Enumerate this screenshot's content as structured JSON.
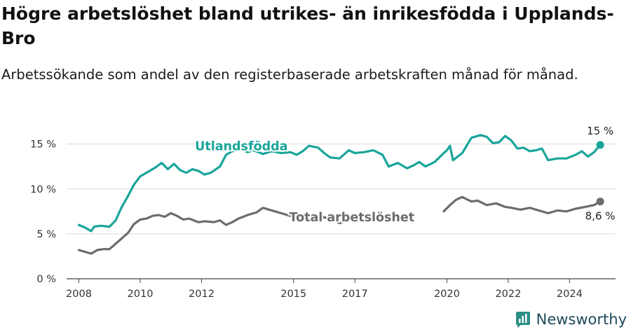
{
  "chart_data": {
    "type": "line",
    "title": "Högre arbetslöshet bland utrikes- än inrikesfödda i Upplands-Bro",
    "subtitle": "Arbetssökande som andel av den registerbaserade arbetskraften månad för månad.",
    "xlabel": "",
    "ylabel": "",
    "ylim": [
      0,
      17
    ],
    "xlim": [
      2007.6,
      2025.5
    ],
    "yticks": [
      0,
      5,
      10,
      15
    ],
    "ytick_labels": [
      "0 %",
      "5 %",
      "10 %",
      "15 %"
    ],
    "xticks": [
      2008,
      2010,
      2012,
      2015,
      2017,
      2020,
      2022,
      2024
    ],
    "xtick_labels": [
      "2008",
      "2010",
      "2012",
      "2015",
      "2017",
      "2020",
      "2022",
      "2024"
    ],
    "grid": "horizontal",
    "series": [
      {
        "name": "Utlandsfödda",
        "color": "#1aa59a",
        "end_label": "15 %",
        "points": [
          [
            2008.0,
            6.0
          ],
          [
            2008.2,
            5.7
          ],
          [
            2008.4,
            5.3
          ],
          [
            2008.5,
            5.8
          ],
          [
            2008.7,
            5.9
          ],
          [
            2009.0,
            5.8
          ],
          [
            2009.2,
            6.5
          ],
          [
            2009.4,
            8.0
          ],
          [
            2009.6,
            9.2
          ],
          [
            2009.8,
            10.5
          ],
          [
            2010.0,
            11.4
          ],
          [
            2010.2,
            11.8
          ],
          [
            2010.5,
            12.4
          ],
          [
            2010.7,
            12.9
          ],
          [
            2010.9,
            12.2
          ],
          [
            2011.1,
            12.8
          ],
          [
            2011.3,
            12.1
          ],
          [
            2011.5,
            11.8
          ],
          [
            2011.7,
            12.2
          ],
          [
            2011.9,
            12.0
          ],
          [
            2012.1,
            11.6
          ],
          [
            2012.3,
            11.8
          ],
          [
            2012.6,
            12.5
          ],
          [
            2012.8,
            13.8
          ],
          [
            2013.0,
            14.2
          ],
          [
            2013.3,
            14.4
          ],
          [
            2013.5,
            14.1
          ],
          [
            2013.7,
            14.3
          ],
          [
            2014.0,
            13.9
          ],
          [
            2014.3,
            14.2
          ],
          [
            2014.6,
            14.0
          ],
          [
            2014.9,
            14.1
          ],
          [
            2015.1,
            13.8
          ],
          [
            2015.3,
            14.2
          ],
          [
            2015.5,
            14.8
          ],
          [
            2015.8,
            14.6
          ],
          [
            2016.0,
            14.0
          ],
          [
            2016.2,
            13.5
          ],
          [
            2016.5,
            13.4
          ],
          [
            2016.8,
            14.3
          ],
          [
            2017.0,
            14.0
          ],
          [
            2017.3,
            14.1
          ],
          [
            2017.6,
            14.3
          ],
          [
            2017.9,
            13.8
          ],
          [
            2018.1,
            12.5
          ],
          [
            2018.4,
            12.9
          ],
          [
            2018.7,
            12.3
          ],
          [
            2018.9,
            12.6
          ],
          [
            2019.1,
            13.0
          ],
          [
            2019.3,
            12.5
          ],
          [
            2019.6,
            13.0
          ],
          [
            2019.9,
            14.0
          ],
          [
            2020.0,
            14.3
          ],
          [
            2020.1,
            14.8
          ],
          [
            2020.2,
            13.2
          ],
          [
            2020.5,
            14.0
          ],
          [
            2020.8,
            15.7
          ],
          [
            2021.1,
            16.0
          ],
          [
            2021.3,
            15.8
          ],
          [
            2021.5,
            15.1
          ],
          [
            2021.7,
            15.2
          ],
          [
            2021.9,
            15.9
          ],
          [
            2022.1,
            15.4
          ],
          [
            2022.3,
            14.5
          ],
          [
            2022.5,
            14.6
          ],
          [
            2022.7,
            14.2
          ],
          [
            2022.9,
            14.3
          ],
          [
            2023.1,
            14.5
          ],
          [
            2023.3,
            13.2
          ],
          [
            2023.6,
            13.4
          ],
          [
            2023.9,
            13.4
          ],
          [
            2024.2,
            13.8
          ],
          [
            2024.4,
            14.2
          ],
          [
            2024.6,
            13.6
          ],
          [
            2024.8,
            14.1
          ],
          [
            2025.0,
            14.9
          ]
        ]
      },
      {
        "name": "Total arbetslöshet",
        "color": "#6e6a6e",
        "end_label": "8,6 %",
        "points": [
          [
            2008.0,
            3.2
          ],
          [
            2008.2,
            3.0
          ],
          [
            2008.4,
            2.8
          ],
          [
            2008.6,
            3.2
          ],
          [
            2008.8,
            3.3
          ],
          [
            2009.0,
            3.3
          ],
          [
            2009.2,
            3.9
          ],
          [
            2009.4,
            4.5
          ],
          [
            2009.6,
            5.1
          ],
          [
            2009.8,
            6.1
          ],
          [
            2010.0,
            6.6
          ],
          [
            2010.2,
            6.7
          ],
          [
            2010.4,
            7.0
          ],
          [
            2010.6,
            7.1
          ],
          [
            2010.8,
            6.9
          ],
          [
            2011.0,
            7.3
          ],
          [
            2011.2,
            7.0
          ],
          [
            2011.4,
            6.6
          ],
          [
            2011.6,
            6.7
          ],
          [
            2011.9,
            6.3
          ],
          [
            2012.1,
            6.4
          ],
          [
            2012.4,
            6.3
          ],
          [
            2012.6,
            6.5
          ],
          [
            2012.8,
            6.0
          ],
          [
            2013.0,
            6.3
          ],
          [
            2013.2,
            6.7
          ],
          [
            2013.5,
            7.1
          ],
          [
            2013.8,
            7.4
          ],
          [
            2014.0,
            7.9
          ],
          [
            2014.2,
            7.7
          ],
          [
            2014.5,
            7.4
          ],
          [
            2014.8,
            7.1
          ],
          [
            2015.1,
            6.8
          ],
          [
            2015.3,
            6.6
          ],
          [
            2015.6,
            6.7
          ],
          [
            2015.9,
            6.9
          ],
          [
            2016.2,
            6.7
          ],
          [
            2016.5,
            6.2
          ],
          [
            2016.8,
            6.6
          ],
          [
            2016.9,
            6.6
          ],
          [
            null,
            null
          ],
          [
            2019.9,
            7.5
          ],
          [
            2020.1,
            8.2
          ],
          [
            2020.3,
            8.8
          ],
          [
            2020.5,
            9.1
          ],
          [
            2020.8,
            8.6
          ],
          [
            2021.0,
            8.7
          ],
          [
            2021.3,
            8.2
          ],
          [
            2021.6,
            8.4
          ],
          [
            2021.9,
            8.0
          ],
          [
            2022.1,
            7.9
          ],
          [
            2022.4,
            7.7
          ],
          [
            2022.7,
            7.9
          ],
          [
            2023.0,
            7.6
          ],
          [
            2023.3,
            7.3
          ],
          [
            2023.6,
            7.6
          ],
          [
            2023.9,
            7.5
          ],
          [
            2024.2,
            7.8
          ],
          [
            2024.5,
            8.0
          ],
          [
            2024.8,
            8.2
          ],
          [
            2025.0,
            8.6
          ]
        ]
      }
    ],
    "series_labels": [
      {
        "text": "Utlandsfödda",
        "color": "#1aa59a",
        "x": 2013.3,
        "y": 14.3
      },
      {
        "text": "Total arbetslöshet",
        "color": "#6e6a6e",
        "x": 2016.9,
        "y": 6.4
      }
    ]
  },
  "brand": {
    "name": "Newsworthy"
  }
}
